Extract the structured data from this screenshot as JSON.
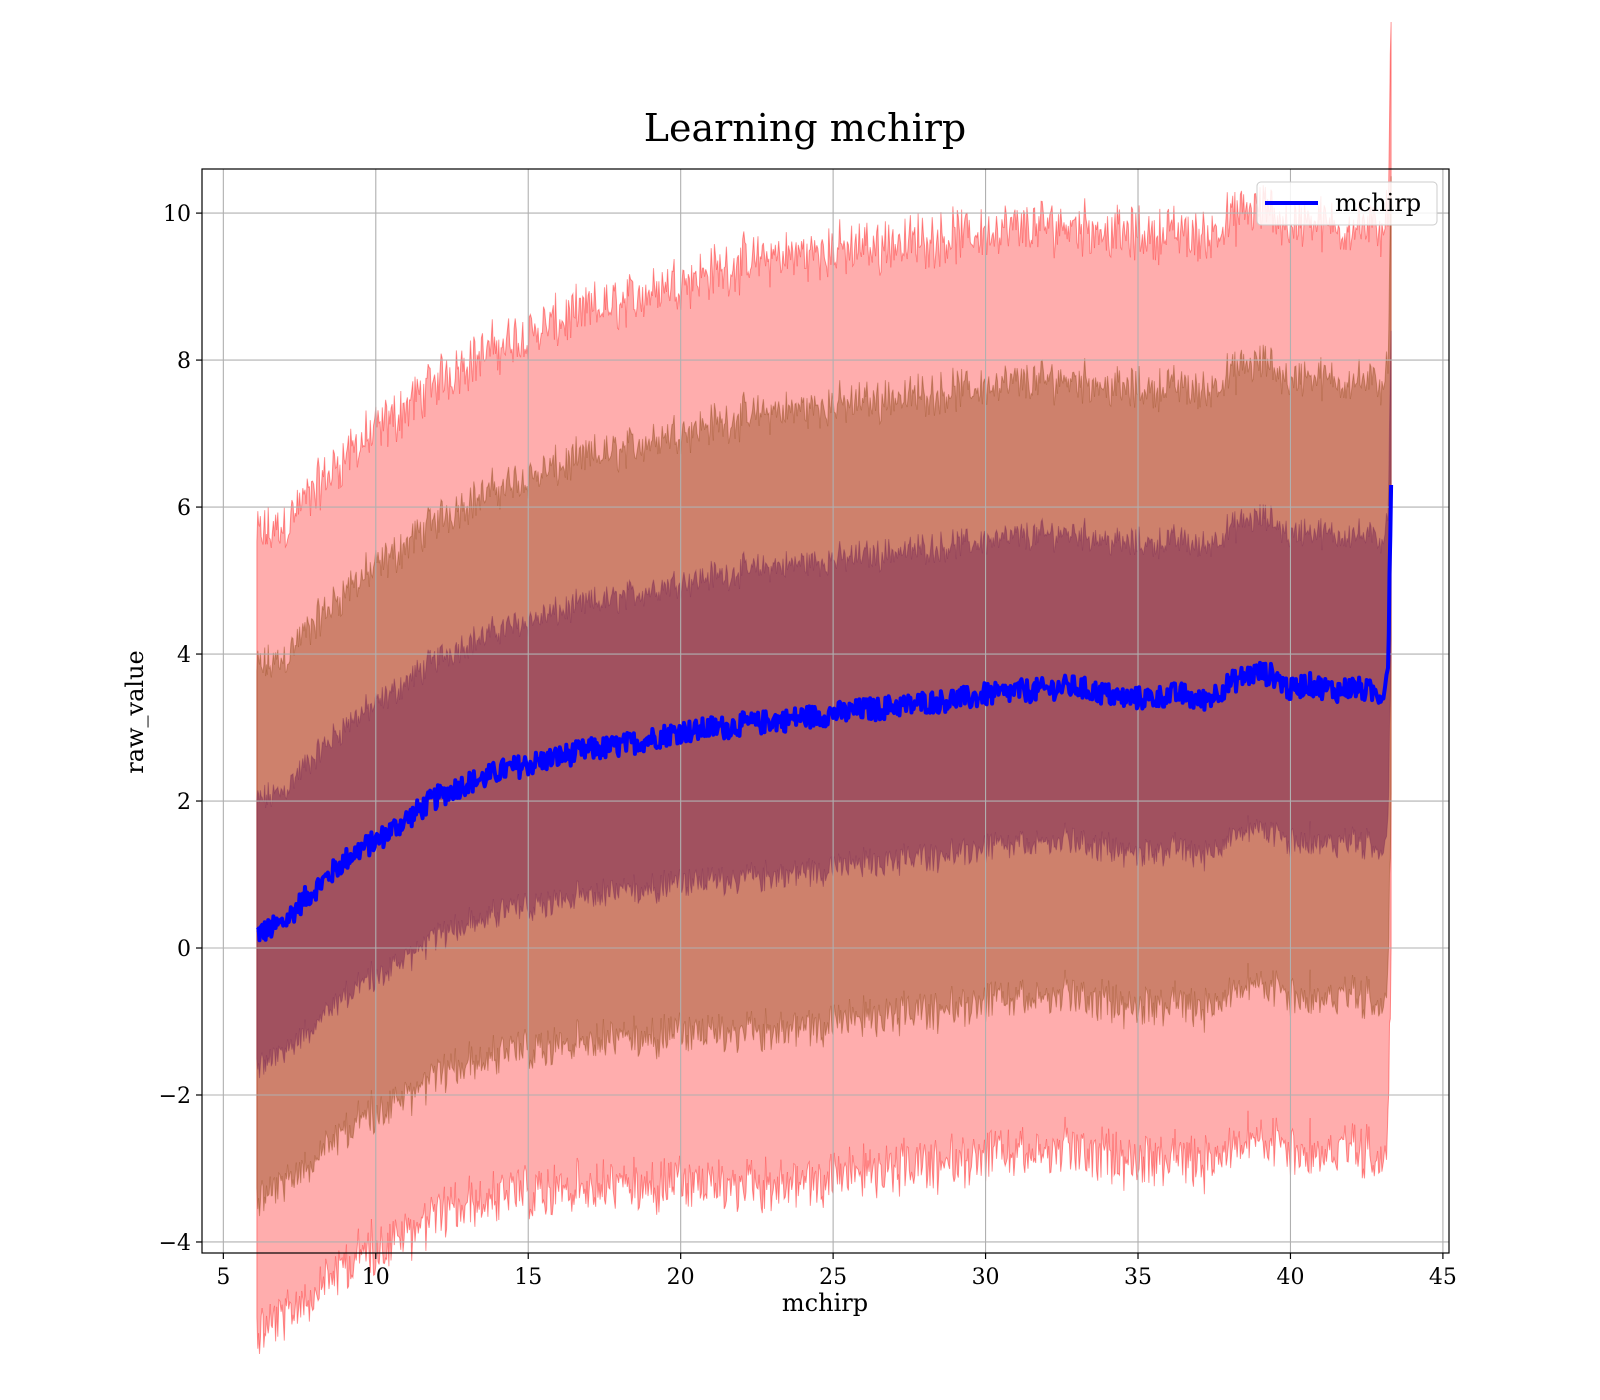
{
  "chart_data": {
    "type": "line",
    "title": "Learning mchirp",
    "xlabel": "mchirp",
    "ylabel": "raw_value",
    "xlim": [
      4.3,
      45.2
    ],
    "ylim": [
      -4.15,
      10.6
    ],
    "xticks": [
      5,
      10,
      15,
      20,
      25,
      30,
      35,
      40,
      45
    ],
    "yticks": [
      -4,
      -2,
      0,
      2,
      4,
      6,
      8,
      10
    ],
    "xtick_labels": [
      "5",
      "10",
      "15",
      "20",
      "25",
      "30",
      "35",
      "40",
      "45"
    ],
    "ytick_labels": [
      "−4",
      "−2",
      "0",
      "2",
      "4",
      "6",
      "8",
      "10"
    ],
    "grid": true,
    "legend_position": "top-right",
    "colors": {
      "line": "#0000ff",
      "band_outer": "#ff0000",
      "band_middle": "#8b4513",
      "band_inner": "#7b2a55",
      "grid": "#b0b0b0"
    },
    "series": [
      {
        "name": "mchirp",
        "x": [
          6.1,
          6.5,
          7.0,
          7.5,
          8.0,
          8.5,
          9.0,
          9.5,
          10.0,
          10.5,
          11.0,
          11.5,
          12.0,
          12.5,
          13.0,
          13.5,
          14.0,
          14.5,
          15.0,
          15.5,
          16.0,
          16.5,
          17.0,
          17.5,
          18.0,
          18.5,
          19.0,
          19.5,
          20.0,
          20.5,
          21.0,
          21.5,
          22.0,
          22.5,
          23.0,
          23.5,
          24.0,
          24.5,
          25.0,
          25.5,
          26.0,
          26.5,
          27.0,
          27.5,
          28.0,
          28.5,
          29.0,
          29.5,
          30.0,
          30.5,
          31.0,
          31.5,
          32.0,
          32.5,
          33.0,
          33.5,
          34.0,
          34.5,
          35.0,
          35.5,
          36.0,
          36.5,
          37.0,
          37.5,
          38.0,
          38.5,
          39.0,
          39.5,
          40.0,
          40.5,
          41.0,
          41.5,
          42.0,
          42.5,
          43.0,
          43.2,
          43.3
        ],
        "values": [
          0.2,
          0.25,
          0.35,
          0.6,
          0.8,
          1.0,
          1.2,
          1.35,
          1.45,
          1.6,
          1.75,
          1.9,
          2.05,
          2.15,
          2.25,
          2.3,
          2.4,
          2.45,
          2.5,
          2.55,
          2.6,
          2.65,
          2.7,
          2.72,
          2.75,
          2.8,
          2.85,
          2.9,
          2.95,
          2.95,
          3.0,
          3.0,
          3.05,
          3.05,
          3.1,
          3.1,
          3.15,
          3.15,
          3.2,
          3.2,
          3.25,
          3.25,
          3.3,
          3.3,
          3.35,
          3.35,
          3.4,
          3.4,
          3.45,
          3.45,
          3.5,
          3.5,
          3.52,
          3.55,
          3.55,
          3.5,
          3.45,
          3.4,
          3.4,
          3.4,
          3.45,
          3.45,
          3.35,
          3.45,
          3.6,
          3.7,
          3.75,
          3.7,
          3.5,
          3.6,
          3.55,
          3.5,
          3.55,
          3.5,
          3.45,
          3.8,
          6.3
        ],
        "sigma": [
          1.8,
          1.8,
          1.8,
          1.8,
          1.81,
          1.82,
          1.83,
          1.84,
          1.85,
          1.86,
          1.87,
          1.88,
          1.89,
          1.9,
          1.91,
          1.92,
          1.93,
          1.94,
          1.95,
          1.96,
          1.97,
          1.98,
          1.99,
          2.0,
          2.01,
          2.02,
          2.03,
          2.04,
          2.05,
          2.06,
          2.07,
          2.08,
          2.09,
          2.1,
          2.1,
          2.1,
          2.1,
          2.1,
          2.1,
          2.1,
          2.1,
          2.1,
          2.1,
          2.1,
          2.1,
          2.1,
          2.1,
          2.1,
          2.1,
          2.1,
          2.1,
          2.1,
          2.1,
          2.1,
          2.1,
          2.1,
          2.1,
          2.1,
          2.1,
          2.1,
          2.1,
          2.1,
          2.1,
          2.1,
          2.1,
          2.1,
          2.1,
          2.1,
          2.1,
          2.1,
          2.1,
          2.1,
          2.1,
          2.1,
          2.1,
          2.1,
          2.1
        ]
      }
    ]
  }
}
